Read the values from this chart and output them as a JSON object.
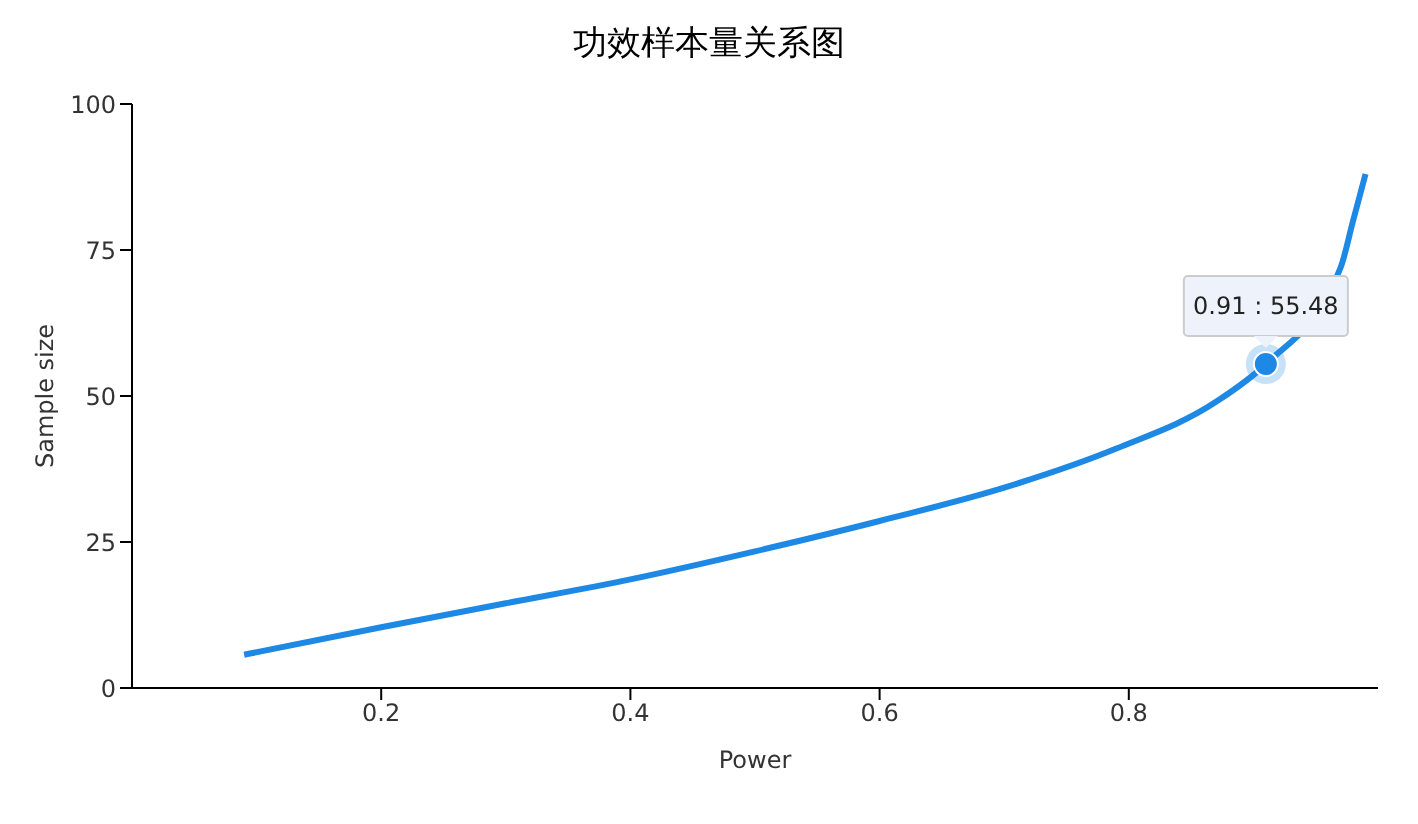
{
  "chart_data": {
    "type": "line",
    "title": "功效样本量关系图",
    "xlabel": "Power",
    "ylabel": "Sample size",
    "x": [
      0.09,
      0.2,
      0.3,
      0.4,
      0.5,
      0.6,
      0.7,
      0.79,
      0.87,
      0.91,
      0.97,
      0.98,
      0.99
    ],
    "series": [
      {
        "color": "#1e88e5",
        "values": [
          5.7,
          10.4,
          14.5,
          18.6,
          23.4,
          28.6,
          34.3,
          41,
          49,
          55.48,
          72,
          80,
          88
        ]
      }
    ],
    "xlim": [
      0,
      1
    ],
    "xticks": [
      0.2,
      0.4,
      0.6,
      0.8
    ],
    "ylim": [
      0,
      100
    ],
    "yticks": [
      0,
      25,
      50,
      75,
      100
    ],
    "grid": false,
    "legend": false,
    "marker": "none",
    "line_style": "solid",
    "annotations": [
      {
        "text": "0.91 : 55.48",
        "x": 0.91,
        "y": 55.48
      }
    ]
  }
}
